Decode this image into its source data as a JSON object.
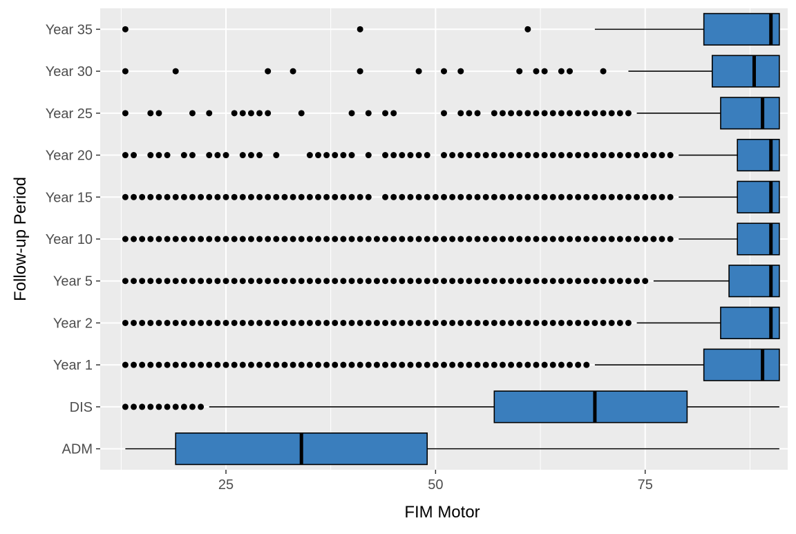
{
  "chart_data": {
    "type": "boxplot",
    "orientation": "horizontal",
    "xlabel": "FIM Motor",
    "ylabel": "Follow-up Period",
    "xlim": [
      10,
      92
    ],
    "x_ticks": [
      25,
      50,
      75
    ],
    "x_tick_labels": [
      "25",
      "50",
      "75"
    ],
    "grid": true,
    "legend": "none",
    "colors": {
      "panel_background": "#ebebeb",
      "grid": "#ffffff",
      "box_fill": "#3a7ebd",
      "box_stroke": "#000000",
      "outlier": "#000000"
    },
    "categories": [
      "ADM",
      "DIS",
      "Year 1",
      "Year 2",
      "Year 5",
      "Year 10",
      "Year 15",
      "Year 20",
      "Year 25",
      "Year 30",
      "Year 35"
    ],
    "boxes": [
      {
        "category": "ADM",
        "whisker_low": 13,
        "q1": 19,
        "median": 34,
        "q3": 49,
        "whisker_high": 91,
        "outliers": []
      },
      {
        "category": "DIS",
        "whisker_low": 23,
        "q1": 57,
        "median": 69,
        "q3": 80,
        "whisker_high": 91,
        "outliers": [
          13,
          14,
          15,
          16,
          17,
          18,
          19,
          20,
          21,
          22
        ]
      },
      {
        "category": "Year 1",
        "whisker_low": 69,
        "q1": 82,
        "median": 89,
        "q3": 91,
        "whisker_high": 91,
        "outliers": [
          13,
          14,
          15,
          16,
          17,
          18,
          19,
          20,
          21,
          22,
          23,
          24,
          25,
          26,
          27,
          28,
          29,
          30,
          31,
          32,
          33,
          34,
          35,
          36,
          37,
          38,
          39,
          40,
          41,
          42,
          43,
          44,
          45,
          46,
          47,
          48,
          49,
          50,
          51,
          52,
          53,
          54,
          55,
          56,
          57,
          58,
          59,
          60,
          61,
          62,
          63,
          64,
          65,
          66,
          67,
          68
        ]
      },
      {
        "category": "Year 2",
        "whisker_low": 74,
        "q1": 84,
        "median": 90,
        "q3": 91,
        "whisker_high": 91,
        "outliers": [
          13,
          14,
          15,
          16,
          17,
          18,
          19,
          20,
          21,
          22,
          23,
          24,
          25,
          26,
          27,
          28,
          29,
          30,
          31,
          32,
          33,
          34,
          35,
          36,
          37,
          38,
          39,
          40,
          41,
          42,
          43,
          44,
          45,
          46,
          47,
          48,
          49,
          50,
          51,
          52,
          53,
          54,
          55,
          56,
          57,
          58,
          59,
          60,
          61,
          62,
          63,
          64,
          65,
          66,
          67,
          68,
          69,
          70,
          71,
          72,
          73
        ]
      },
      {
        "category": "Year 5",
        "whisker_low": 76,
        "q1": 85,
        "median": 90,
        "q3": 91,
        "whisker_high": 91,
        "outliers": [
          13,
          14,
          15,
          16,
          17,
          18,
          19,
          20,
          21,
          22,
          23,
          24,
          25,
          26,
          27,
          28,
          29,
          30,
          31,
          32,
          33,
          34,
          35,
          36,
          37,
          38,
          39,
          40,
          41,
          42,
          43,
          44,
          45,
          46,
          47,
          48,
          49,
          50,
          51,
          52,
          53,
          54,
          55,
          56,
          57,
          58,
          59,
          60,
          61,
          62,
          63,
          64,
          65,
          66,
          67,
          68,
          69,
          70,
          71,
          72,
          73,
          74,
          75
        ]
      },
      {
        "category": "Year 10",
        "whisker_low": 79,
        "q1": 86,
        "median": 90,
        "q3": 91,
        "whisker_high": 91,
        "outliers": [
          13,
          14,
          15,
          16,
          17,
          18,
          19,
          20,
          21,
          22,
          23,
          24,
          25,
          26,
          27,
          28,
          29,
          30,
          31,
          32,
          33,
          34,
          35,
          36,
          37,
          38,
          39,
          40,
          41,
          42,
          43,
          44,
          45,
          46,
          47,
          48,
          49,
          50,
          51,
          52,
          53,
          54,
          55,
          56,
          57,
          58,
          59,
          60,
          61,
          62,
          63,
          64,
          65,
          66,
          67,
          68,
          69,
          70,
          71,
          72,
          73,
          74,
          75,
          76,
          77,
          78
        ]
      },
      {
        "category": "Year 15",
        "whisker_low": 79,
        "q1": 86,
        "median": 90,
        "q3": 91,
        "whisker_high": 91,
        "outliers": [
          13,
          14,
          15,
          16,
          17,
          18,
          19,
          20,
          21,
          22,
          23,
          24,
          25,
          26,
          27,
          28,
          29,
          30,
          31,
          32,
          33,
          34,
          35,
          36,
          37,
          38,
          39,
          40,
          41,
          42,
          44,
          45,
          46,
          47,
          48,
          49,
          50,
          51,
          52,
          53,
          54,
          55,
          56,
          57,
          58,
          59,
          60,
          61,
          62,
          63,
          64,
          65,
          66,
          67,
          68,
          69,
          70,
          71,
          72,
          73,
          74,
          75,
          76,
          77,
          78
        ]
      },
      {
        "category": "Year 20",
        "whisker_low": 79,
        "q1": 86,
        "median": 90,
        "q3": 91,
        "whisker_high": 91,
        "outliers": [
          13,
          14,
          16,
          17,
          18,
          20,
          21,
          23,
          24,
          25,
          27,
          28,
          29,
          31,
          35,
          36,
          37,
          38,
          39,
          40,
          42,
          44,
          45,
          46,
          47,
          48,
          49,
          51,
          52,
          53,
          54,
          55,
          56,
          57,
          58,
          59,
          60,
          61,
          62,
          63,
          64,
          65,
          66,
          67,
          68,
          69,
          70,
          71,
          72,
          73,
          74,
          75,
          76,
          77,
          78
        ]
      },
      {
        "category": "Year 25",
        "whisker_low": 74,
        "q1": 84,
        "median": 89,
        "q3": 91,
        "whisker_high": 91,
        "outliers": [
          13,
          16,
          17,
          21,
          23,
          26,
          27,
          28,
          29,
          30,
          34,
          40,
          42,
          44,
          45,
          51,
          53,
          54,
          55,
          57,
          58,
          59,
          60,
          61,
          62,
          63,
          64,
          65,
          66,
          67,
          68,
          69,
          70,
          71,
          72,
          73
        ]
      },
      {
        "category": "Year 30",
        "whisker_low": 73,
        "q1": 83,
        "median": 88,
        "q3": 91,
        "whisker_high": 91,
        "outliers": [
          13,
          19,
          30,
          33,
          41,
          48,
          51,
          53,
          60,
          62,
          63,
          65,
          66,
          70
        ]
      },
      {
        "category": "Year 35",
        "whisker_low": 69,
        "q1": 82,
        "median": 90,
        "q3": 91,
        "whisker_high": 91,
        "outliers": [
          13,
          41,
          61
        ]
      }
    ]
  }
}
